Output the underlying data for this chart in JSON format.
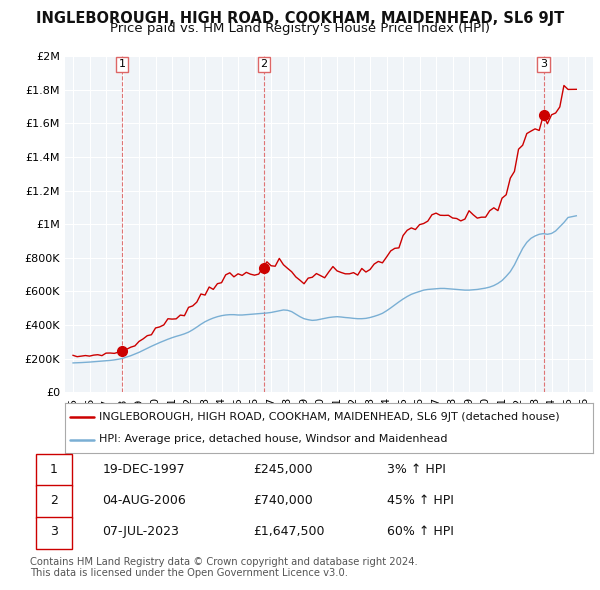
{
  "title": "INGLEBOROUGH, HIGH ROAD, COOKHAM, MAIDENHEAD, SL6 9JT",
  "subtitle": "Price paid vs. HM Land Registry's House Price Index (HPI)",
  "ylim": [
    0,
    2000000
  ],
  "yticks": [
    0,
    200000,
    400000,
    600000,
    800000,
    1000000,
    1200000,
    1400000,
    1600000,
    1800000,
    2000000
  ],
  "ytick_labels": [
    "£0",
    "£200K",
    "£400K",
    "£600K",
    "£800K",
    "£1M",
    "£1.2M",
    "£1.4M",
    "£1.6M",
    "£1.8M",
    "£2M"
  ],
  "xlim_start": 1994.5,
  "xlim_end": 2026.5,
  "background_color": "#ffffff",
  "grid_color": "#cccccc",
  "line_color_red": "#cc0000",
  "line_color_blue": "#7aafd4",
  "sale_color": "#cc0000",
  "sale_marker_size": 7,
  "dashed_line_color": "#dd6666",
  "legend_label_red": "INGLEBOROUGH, HIGH ROAD, COOKHAM, MAIDENHEAD, SL6 9JT (detached house)",
  "legend_label_blue": "HPI: Average price, detached house, Windsor and Maidenhead",
  "sale1_date": 1997.97,
  "sale1_price": 245000,
  "sale1_label": "1",
  "sale2_date": 2006.58,
  "sale2_price": 740000,
  "sale2_label": "2",
  "sale3_date": 2023.52,
  "sale3_price": 1647500,
  "sale3_label": "3",
  "table_rows": [
    [
      "1",
      "19-DEC-1997",
      "£245,000",
      "3% ↑ HPI"
    ],
    [
      "2",
      "04-AUG-2006",
      "£740,000",
      "45% ↑ HPI"
    ],
    [
      "3",
      "07-JUL-2023",
      "£1,647,500",
      "60% ↑ HPI"
    ]
  ],
  "footer": "Contains HM Land Registry data © Crown copyright and database right 2024.\nThis data is licensed under the Open Government Licence v3.0.",
  "title_fontsize": 10.5,
  "subtitle_fontsize": 9.5,
  "tick_fontsize": 8,
  "legend_fontsize": 8,
  "table_fontsize": 9
}
